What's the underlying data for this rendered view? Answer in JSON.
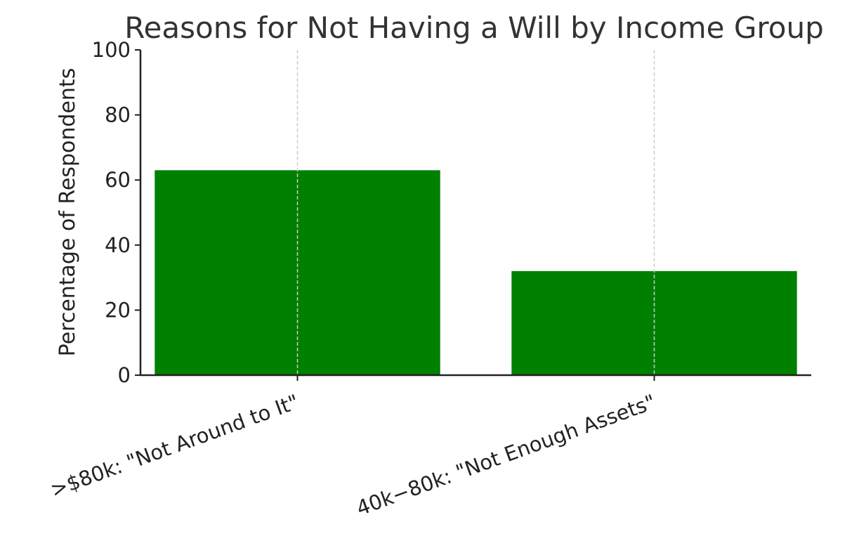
{
  "chart_data": {
    "type": "bar",
    "title": "Reasons for Not Having a Will by Income Group",
    "xlabel": "",
    "ylabel": "Percentage of Respondents",
    "categories": [
      ">$80k: \"Not Around to It\"",
      "40k−80k: \"Not Enough Assets\""
    ],
    "values": [
      63,
      32
    ],
    "ylim": [
      0,
      100
    ],
    "yticks": [
      0,
      20,
      40,
      60,
      80,
      100
    ],
    "grid": "x-dashed",
    "colors": {
      "bar": "#008000",
      "axis": "#222222",
      "grid": "#cccccc",
      "title": "#333333"
    }
  }
}
